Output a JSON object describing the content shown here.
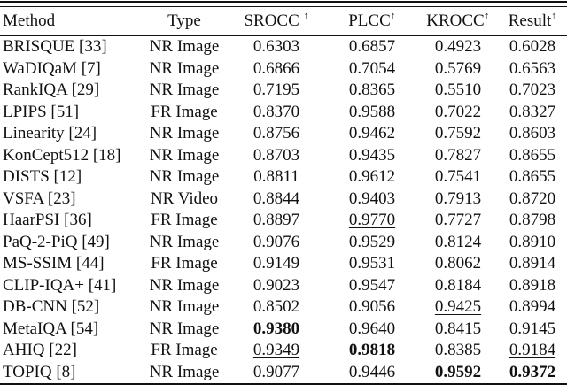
{
  "colors": {
    "background": "#ffffff",
    "text": "#111111",
    "rule": "#111111"
  },
  "table": {
    "columns": [
      {
        "id": "method",
        "label": "Method",
        "arrow": ""
      },
      {
        "id": "type",
        "label": "Type",
        "arrow": ""
      },
      {
        "id": "srocc",
        "label": "SROCC ",
        "arrow": "↑"
      },
      {
        "id": "plcc",
        "label": "PLCC",
        "arrow": "↑"
      },
      {
        "id": "krocc",
        "label": "KROCC",
        "arrow": "↑"
      },
      {
        "id": "result",
        "label": "Result",
        "arrow": "↑"
      }
    ],
    "score_column_ids": [
      "srocc",
      "plcc",
      "krocc",
      "result"
    ],
    "rows": [
      {
        "method": "BRISQUE [33]",
        "type": "NR Image",
        "scores": [
          {
            "value": "0.6303",
            "style": "normal"
          },
          {
            "value": "0.6857",
            "style": "normal"
          },
          {
            "value": "0.4923",
            "style": "normal"
          },
          {
            "value": "0.6028",
            "style": "normal"
          }
        ]
      },
      {
        "method": "WaDIQaM [7]",
        "type": "NR Image",
        "scores": [
          {
            "value": "0.6866",
            "style": "normal"
          },
          {
            "value": "0.7054",
            "style": "normal"
          },
          {
            "value": "0.5769",
            "style": "normal"
          },
          {
            "value": "0.6563",
            "style": "normal"
          }
        ]
      },
      {
        "method": "RankIQA [29]",
        "type": "NR Image",
        "scores": [
          {
            "value": "0.7195",
            "style": "normal"
          },
          {
            "value": "0.8365",
            "style": "normal"
          },
          {
            "value": "0.5510",
            "style": "normal"
          },
          {
            "value": "0.7023",
            "style": "normal"
          }
        ]
      },
      {
        "method": "LPIPS [51]",
        "type": "FR Image",
        "scores": [
          {
            "value": "0.8370",
            "style": "normal"
          },
          {
            "value": "0.9588",
            "style": "normal"
          },
          {
            "value": "0.7022",
            "style": "normal"
          },
          {
            "value": "0.8327",
            "style": "normal"
          }
        ]
      },
      {
        "method": "Linearity [24]",
        "type": "NR Image",
        "scores": [
          {
            "value": "0.8756",
            "style": "normal"
          },
          {
            "value": "0.9462",
            "style": "normal"
          },
          {
            "value": "0.7592",
            "style": "normal"
          },
          {
            "value": "0.8603",
            "style": "normal"
          }
        ]
      },
      {
        "method": "KonCept512 [18]",
        "type": "NR Image",
        "scores": [
          {
            "value": "0.8703",
            "style": "normal"
          },
          {
            "value": "0.9435",
            "style": "normal"
          },
          {
            "value": "0.7827",
            "style": "normal"
          },
          {
            "value": "0.8655",
            "style": "normal"
          }
        ]
      },
      {
        "method": "DISTS [12]",
        "type": "NR Image",
        "scores": [
          {
            "value": "0.8811",
            "style": "normal"
          },
          {
            "value": "0.9612",
            "style": "normal"
          },
          {
            "value": "0.7541",
            "style": "normal"
          },
          {
            "value": "0.8655",
            "style": "normal"
          }
        ]
      },
      {
        "method": "VSFA [23]",
        "type": "NR Video",
        "scores": [
          {
            "value": "0.8844",
            "style": "normal"
          },
          {
            "value": "0.9403",
            "style": "normal"
          },
          {
            "value": "0.7913",
            "style": "normal"
          },
          {
            "value": "0.8720",
            "style": "normal"
          }
        ]
      },
      {
        "method": "HaarPSI [36]",
        "type": "FR Image",
        "scores": [
          {
            "value": "0.8897",
            "style": "normal"
          },
          {
            "value": "0.9770",
            "style": "underline"
          },
          {
            "value": "0.7727",
            "style": "normal"
          },
          {
            "value": "0.8798",
            "style": "normal"
          }
        ]
      },
      {
        "method": "PaQ-2-PiQ [49]",
        "type": "NR Image",
        "scores": [
          {
            "value": "0.9076",
            "style": "normal"
          },
          {
            "value": "0.9529",
            "style": "normal"
          },
          {
            "value": "0.8124",
            "style": "normal"
          },
          {
            "value": "0.8910",
            "style": "normal"
          }
        ]
      },
      {
        "method": "MS-SSIM [44]",
        "type": "FR Image",
        "scores": [
          {
            "value": "0.9149",
            "style": "normal"
          },
          {
            "value": "0.9531",
            "style": "normal"
          },
          {
            "value": "0.8062",
            "style": "normal"
          },
          {
            "value": "0.8914",
            "style": "normal"
          }
        ]
      },
      {
        "method": "CLIP-IQA+ [41]",
        "type": "NR Image",
        "scores": [
          {
            "value": "0.9023",
            "style": "normal"
          },
          {
            "value": "0.9547",
            "style": "normal"
          },
          {
            "value": "0.8184",
            "style": "normal"
          },
          {
            "value": "0.8918",
            "style": "normal"
          }
        ]
      },
      {
        "method": "DB-CNN [52]",
        "type": "NR Image",
        "scores": [
          {
            "value": "0.8502",
            "style": "normal"
          },
          {
            "value": "0.9056",
            "style": "normal"
          },
          {
            "value": "0.9425",
            "style": "underline"
          },
          {
            "value": "0.8994",
            "style": "normal"
          }
        ]
      },
      {
        "method": "MetaIQA [54]",
        "type": "NR Image",
        "scores": [
          {
            "value": "0.9380",
            "style": "bold"
          },
          {
            "value": "0.9640",
            "style": "normal"
          },
          {
            "value": "0.8415",
            "style": "normal"
          },
          {
            "value": "0.9145",
            "style": "normal"
          }
        ]
      },
      {
        "method": "AHIQ [22]",
        "type": "FR Image",
        "scores": [
          {
            "value": "0.9349",
            "style": "underline"
          },
          {
            "value": "0.9818",
            "style": "bold"
          },
          {
            "value": "0.8385",
            "style": "normal"
          },
          {
            "value": "0.9184",
            "style": "underline"
          }
        ]
      },
      {
        "method": "TOPIQ [8]",
        "type": "NR Image",
        "scores": [
          {
            "value": "0.9077",
            "style": "normal"
          },
          {
            "value": "0.9446",
            "style": "normal"
          },
          {
            "value": "0.9592",
            "style": "bold"
          },
          {
            "value": "0.9372",
            "style": "bold"
          }
        ]
      }
    ]
  }
}
